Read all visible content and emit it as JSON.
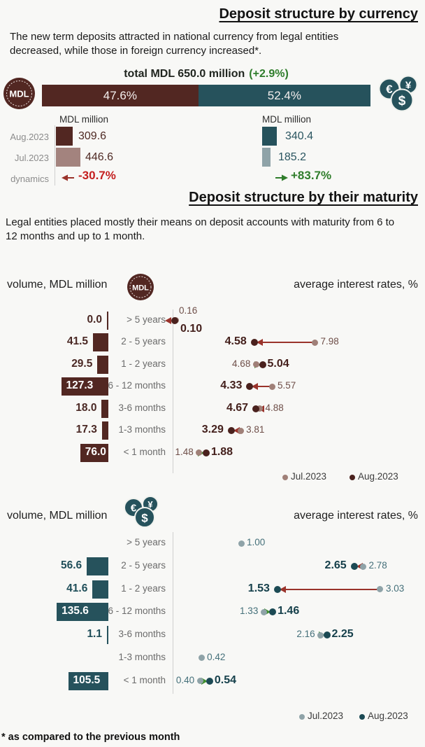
{
  "header": {
    "currency_title": "Deposit structure by currency",
    "currency_intro": "The new term deposits attracted in national currency from legal entities decreased, while those in foreign currency increased*.",
    "maturity_title": "Deposit structure by their maturity",
    "maturity_intro": "Legal entities placed mostly their means on deposit accounts with maturity from 6 to 12 months and up to 1 month.",
    "footnote": "* as compared to the previous month"
  },
  "icons": {
    "mdl_coin_text": "MDL",
    "fx_symbols": [
      "€",
      "¥",
      "$"
    ]
  },
  "colors": {
    "national_dark": "#522722",
    "national_light": "#a3837e",
    "foreign_dark": "#26525c",
    "foreign_light": "#8fa3a8",
    "total_bar_green": "#a9b4a2",
    "positive_green": "#2f7d2b",
    "negative_red": "#c41f1f",
    "arrow_down_red": "#9a332b",
    "arrow_up_green": "#3f8f2f"
  },
  "chart_data": [
    {
      "type": "bar",
      "name": "new term deposits by currency",
      "total_label": "total MDL 650.0 million",
      "total_change": "(+2.9%)",
      "unit": "MDL million",
      "row_labels": [
        "Aug.2023",
        "Jul.2023",
        "dynamics"
      ],
      "segments": [
        {
          "currency": "national currency (MDL)",
          "share_label": "47.6%",
          "share_pct": 47.6,
          "aug_2023": 309.6,
          "jul_2023": 446.6,
          "dynamics_label": "-30.7%",
          "trend": "down"
        },
        {
          "currency": "foreign currency",
          "share_label": "52.4%",
          "share_pct": 52.4,
          "aug_2023": 340.4,
          "jul_2023": 185.2,
          "dynamics_label": "+83.7%",
          "trend": "up"
        }
      ]
    },
    {
      "type": "bar+dot",
      "name": "MDL deposits by maturity",
      "volume_axis_label": "volume, MDL million",
      "rates_axis_label": "average interest rates, %",
      "categories": [
        "> 5 years",
        "2 - 5 years",
        "1 - 2 years",
        "6 - 12 months",
        "3-6 months",
        "1-3 months",
        "< 1 month"
      ],
      "volumes_mdl_million": [
        0.0,
        41.5,
        29.5,
        127.3,
        18.0,
        17.3,
        76.0
      ],
      "rates_pct": {
        "jul_2023": [
          0.16,
          7.98,
          4.68,
          5.57,
          4.88,
          3.81,
          1.48
        ],
        "aug_2023": [
          0.1,
          4.58,
          5.04,
          4.33,
          4.67,
          3.29,
          1.88
        ]
      },
      "legend": [
        "Jul.2023",
        "Aug.2023"
      ]
    },
    {
      "type": "bar+dot",
      "name": "foreign currency deposits by maturity",
      "volume_axis_label": "volume, MDL million",
      "rates_axis_label": "average interest rates, %",
      "categories": [
        "> 5 years",
        "2 - 5 years",
        "1 - 2 years",
        "6 - 12 months",
        "3-6 months",
        "1-3 months",
        "< 1 month"
      ],
      "volumes_mdl_million": [
        null,
        56.6,
        41.6,
        135.6,
        1.1,
        null,
        105.5
      ],
      "rates_pct": {
        "jul_2023": [
          1.0,
          2.78,
          3.03,
          1.33,
          2.16,
          0.42,
          0.4
        ],
        "aug_2023": [
          null,
          2.65,
          1.53,
          1.46,
          2.25,
          null,
          0.54
        ]
      },
      "legend": [
        "Jul.2023",
        "Aug.2023"
      ]
    }
  ]
}
